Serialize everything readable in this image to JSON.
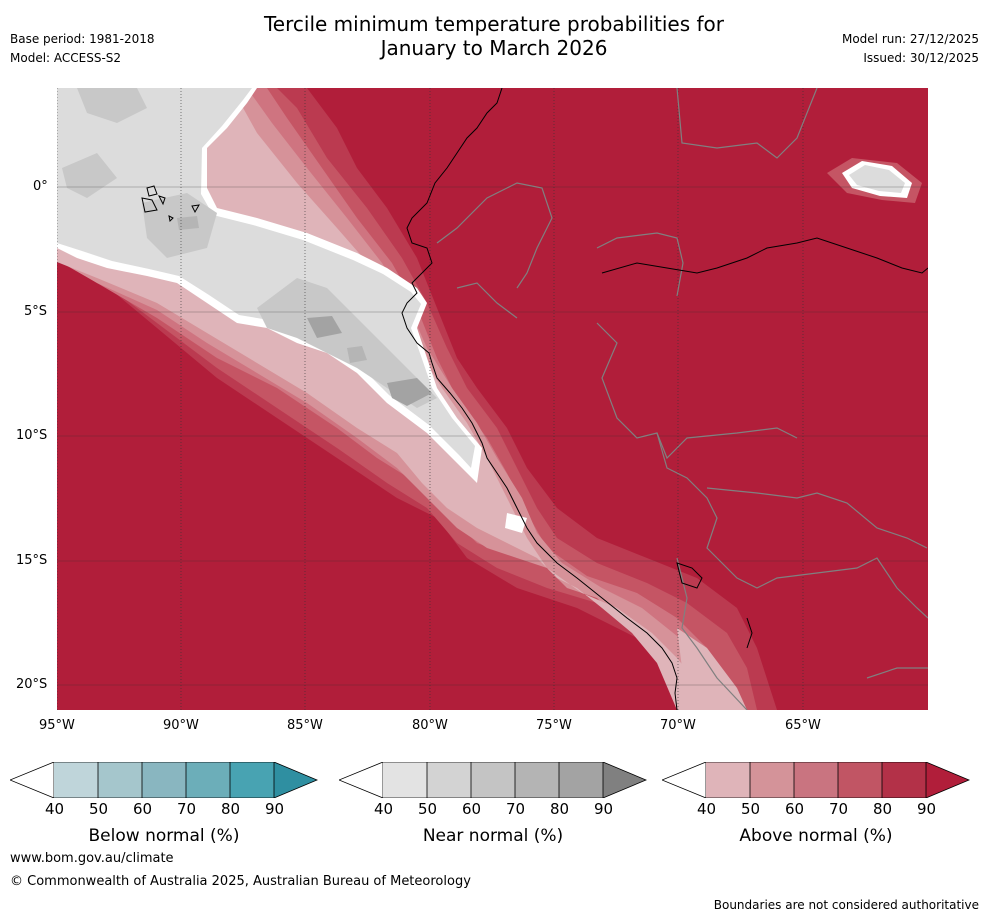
{
  "header": {
    "title_line1": "Tercile minimum temperature probabilities for",
    "title_line2": "January to March 2026",
    "base_period": "Base period: 1981-2018",
    "model": "Model: ACCESS-S2",
    "model_run": "Model run: 27/12/2025",
    "issued": "Issued: 30/12/2025"
  },
  "map": {
    "lat_labels": [
      "0°",
      "5°S",
      "10°S",
      "15°S",
      "20°S"
    ],
    "lon_labels": [
      "95°W",
      "90°W",
      "85°W",
      "80°W",
      "75°W",
      "70°W",
      "65°W"
    ],
    "colors": {
      "above_90": "#b11e3a",
      "above_80": "#bb3a50",
      "above_70": "#c55564",
      "above_60": "#cf7480",
      "above_50": "#d69299",
      "above_40": "#dfb4b9",
      "near_50": "#dcdcdc",
      "near_60": "#c8c8c8",
      "near_70": "#b5b5b5",
      "near_80": "#a3a3a3",
      "coast": "#000000",
      "border": "#808080"
    }
  },
  "colorbars": [
    {
      "label": "Below normal (%)",
      "ticks": [
        "40",
        "50",
        "60",
        "70",
        "80",
        "90"
      ],
      "colors": [
        "#ffffff",
        "#bfd5da",
        "#a5c6cc",
        "#89b6c0",
        "#6caeb9",
        "#48a3b2",
        "#2f8fa1"
      ]
    },
    {
      "label": "Near normal (%)",
      "ticks": [
        "40",
        "50",
        "60",
        "70",
        "80",
        "90"
      ],
      "colors": [
        "#ffffff",
        "#e3e3e3",
        "#d3d3d3",
        "#c4c4c4",
        "#b4b4b4",
        "#a3a3a3",
        "#808080"
      ]
    },
    {
      "label": "Above normal (%)",
      "ticks": [
        "40",
        "50",
        "60",
        "70",
        "80",
        "90"
      ],
      "colors": [
        "#ffffff",
        "#dfb4b9",
        "#d49399",
        "#c97480",
        "#c15564",
        "#b33148",
        "#b11e3a"
      ]
    }
  ],
  "footer": {
    "url": "www.bom.gov.au/climate",
    "copyright": "© Commonwealth of Australia 2025, Australian Bureau of Meteorology",
    "note": "Boundaries are not considered authoritative"
  }
}
